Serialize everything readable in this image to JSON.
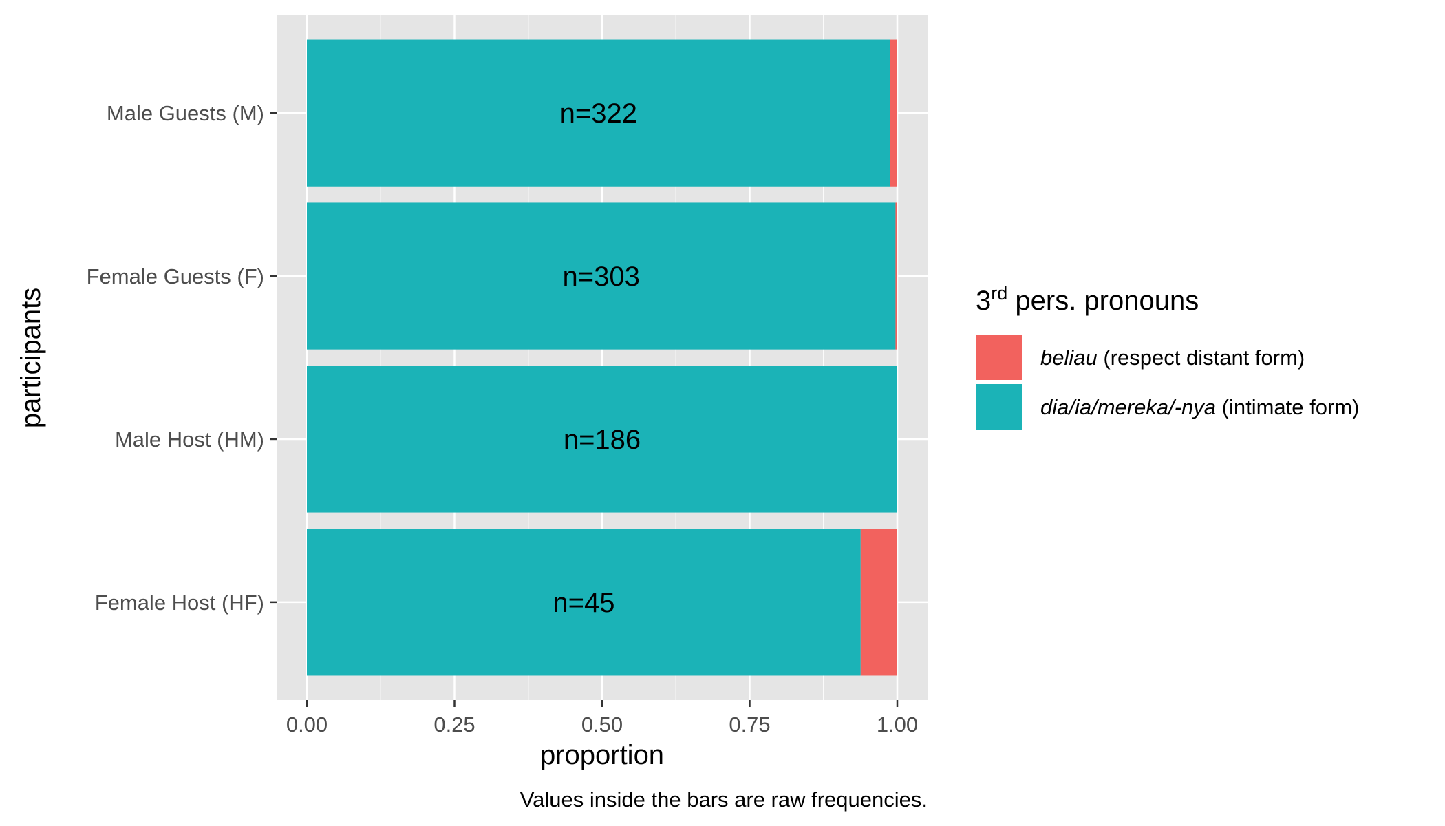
{
  "chart_data": {
    "type": "bar",
    "orientation": "horizontal",
    "stacked": true,
    "xlabel": "proportion",
    "ylabel": "participants",
    "xlim": [
      0,
      1
    ],
    "x_ticks": [
      "0.00",
      "0.25",
      "0.50",
      "0.75",
      "1.00"
    ],
    "caption": "Values inside the bars are raw frequencies.",
    "grid": true,
    "legend_position": "right",
    "categories": [
      "Male Guests (M)",
      "Female Guests (F)",
      "Male Host (HM)",
      "Female Host (HF)"
    ],
    "bar_labels": [
      "n=322",
      "n=303",
      "n=186",
      "n=45"
    ],
    "series": [
      {
        "name": "dia/ia/mereka/-nya (intimate form)",
        "color": "#1bb3b7",
        "values": [
          0.988,
          0.997,
          1.0,
          0.938
        ]
      },
      {
        "name": "beliau (respect distant form)",
        "color": "#f2625e",
        "values": [
          0.012,
          0.003,
          0.0,
          0.062
        ]
      }
    ],
    "legend": {
      "title_main": "3",
      "title_sup": "rd",
      "title_rest": " pers. pronouns",
      "items": [
        {
          "italic": "beliau",
          "rest": " (respect distant form)",
          "color": "#f2625e"
        },
        {
          "italic": "dia/ia/mereka/-nya",
          "rest": " (intimate form)",
          "color": "#1bb3b7"
        }
      ]
    }
  }
}
